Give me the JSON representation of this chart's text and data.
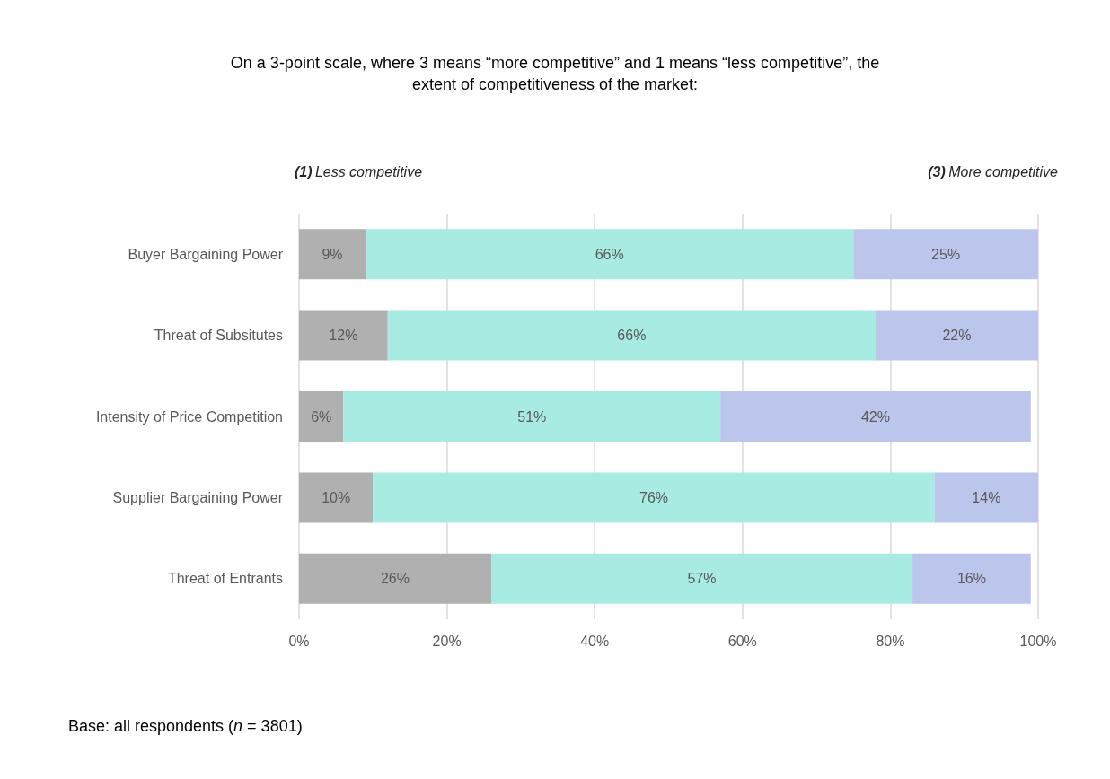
{
  "chart_data": {
    "type": "bar",
    "orientation": "horizontal",
    "stacked": true,
    "title": "On a 3-point scale, where 3 means “more competitive” and 1 means “less competitive”, the\nextent of competitiveness of the market:",
    "categories": [
      "Buyer Bargaining Power",
      "Threat of Subsitutes",
      "Intensity of Price Competition",
      "Supplier Bargaining Power",
      "Threat of Entrants"
    ],
    "series": [
      {
        "color": "#b0b0b0",
        "values": [
          9,
          12,
          6,
          10,
          26
        ],
        "value_labels": [
          "9%",
          "12%",
          "6%",
          "10%",
          "26%"
        ]
      },
      {
        "color": "#a8ebe3",
        "values": [
          66,
          66,
          51,
          76,
          57
        ],
        "value_labels": [
          "66%",
          "66%",
          "51%",
          "76%",
          "57%"
        ]
      },
      {
        "color": "#bcc6ec",
        "values": [
          25,
          22,
          42,
          14,
          16
        ],
        "value_labels": [
          "25%",
          "22%",
          "42%",
          "14%",
          "16%"
        ]
      }
    ],
    "xlim": [
      0,
      100
    ],
    "xticks": [
      {
        "value": 0,
        "label": "0%"
      },
      {
        "value": 20,
        "label": "20%"
      },
      {
        "value": 40,
        "label": "40%"
      },
      {
        "value": 60,
        "label": "60%"
      },
      {
        "value": 80,
        "label": "80%"
      },
      {
        "value": 100,
        "label": "100%"
      }
    ],
    "grid": "x",
    "annotations": [
      "(1) Less competitive",
      "(3) More competitive",
      "Base: all respondents (n = 3801)"
    ]
  }
}
